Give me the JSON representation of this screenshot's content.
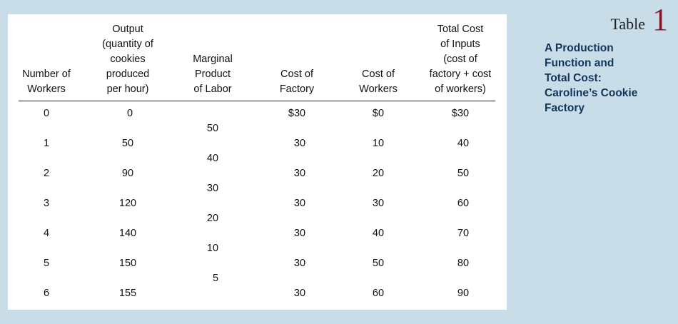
{
  "table_label": {
    "word": "Table",
    "number": "1"
  },
  "caption": [
    "A Production",
    "Function and",
    "Total Cost:",
    "Caroline’s Cookie",
    "Factory"
  ],
  "headers": {
    "workers": [
      "Number of",
      "Workers"
    ],
    "output": [
      "Output",
      "(quantity of",
      "cookies",
      "produced",
      "per hour)"
    ],
    "mpl": [
      "Marginal",
      "Product",
      "of Labor"
    ],
    "factory": [
      "Cost of",
      "Factory"
    ],
    "worker_cost": [
      "Cost of",
      "Workers"
    ],
    "total": [
      "Total Cost",
      "of Inputs",
      "(cost of",
      "factory + cost",
      "of workers)"
    ]
  },
  "rows": [
    {
      "workers": "0",
      "output": "0",
      "factory": "$30",
      "worker_cost": "$0",
      "total": "$30"
    },
    {
      "workers": "1",
      "output": "50",
      "factory": "30",
      "worker_cost": "10",
      "total": "40"
    },
    {
      "workers": "2",
      "output": "90",
      "factory": "30",
      "worker_cost": "20",
      "total": "50"
    },
    {
      "workers": "3",
      "output": "120",
      "factory": "30",
      "worker_cost": "30",
      "total": "60"
    },
    {
      "workers": "4",
      "output": "140",
      "factory": "30",
      "worker_cost": "40",
      "total": "70"
    },
    {
      "workers": "5",
      "output": "150",
      "factory": "30",
      "worker_cost": "50",
      "total": "80"
    },
    {
      "workers": "6",
      "output": "155",
      "factory": "30",
      "worker_cost": "60",
      "total": "90"
    }
  ],
  "marginal_product": [
    "50",
    "40",
    "30",
    "20",
    "10",
    "5"
  ]
}
